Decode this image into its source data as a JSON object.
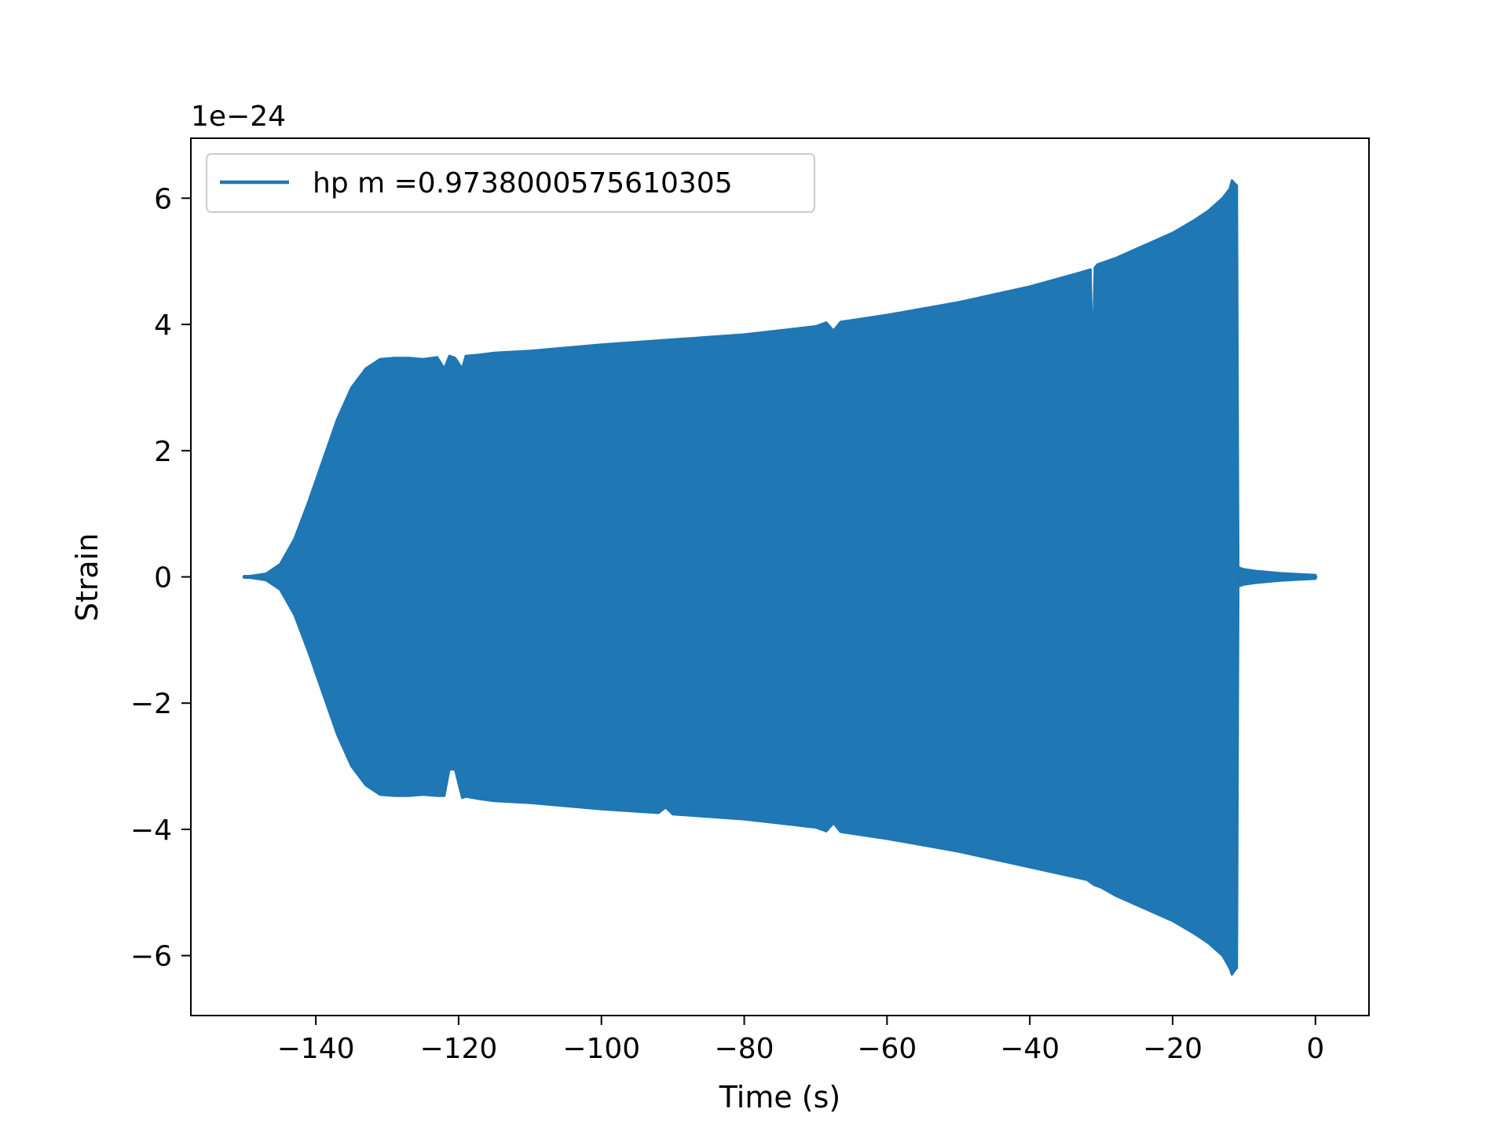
{
  "chart_data": {
    "type": "line",
    "xlabel": "Time (s)",
    "ylabel": "Strain",
    "y_scale_label": "1e−24",
    "y_scale_factor": 1e-24,
    "xlim": [
      -157.5,
      7.5
    ],
    "ylim": [
      -6.95,
      6.95
    ],
    "x_ticks": [
      -140,
      -120,
      -100,
      -80,
      -60,
      -40,
      -20,
      0
    ],
    "x_tick_labels": [
      "−140",
      "−120",
      "−100",
      "−80",
      "−60",
      "−40",
      "−20",
      "0"
    ],
    "y_ticks": [
      -6,
      -4,
      -2,
      0,
      2,
      4,
      6
    ],
    "y_tick_labels": [
      "−6",
      "−4",
      "−2",
      "0",
      "2",
      "4",
      "6"
    ],
    "grid": false,
    "legend_position": "upper-left",
    "series": [
      {
        "name": "hp m =0.9738000575610305",
        "color": "#1f77b4",
        "style": "dense-oscillation",
        "envelope_upper": {
          "x": [
            -150,
            -147,
            -145,
            -143,
            -141,
            -139,
            -137,
            -135,
            -133,
            -131,
            -129,
            -127,
            -125,
            -123,
            -122,
            -121.3,
            -120.5,
            -119.5,
            -119,
            -117,
            -115,
            -110,
            -100,
            -90,
            -80,
            -70,
            -68.5,
            -67.5,
            -66.5,
            -60,
            -50,
            -40,
            -33,
            -31.5,
            -31.2,
            -30.9,
            -30.5,
            -28,
            -25,
            -20,
            -17,
            -15,
            -13,
            -12,
            -11.7,
            -11.2,
            -11,
            -10.8
          ],
          "y": [
            0.0,
            0.05,
            0.2,
            0.6,
            1.2,
            1.85,
            2.5,
            3.0,
            3.3,
            3.45,
            3.47,
            3.47,
            3.45,
            3.48,
            3.3,
            3.5,
            3.47,
            3.3,
            3.5,
            3.52,
            3.55,
            3.58,
            3.68,
            3.76,
            3.84,
            3.97,
            4.03,
            3.9,
            4.04,
            4.15,
            4.35,
            4.6,
            4.82,
            4.87,
            3.3,
            4.9,
            4.95,
            5.05,
            5.2,
            5.45,
            5.65,
            5.8,
            6.0,
            6.15,
            6.28,
            6.22,
            6.2,
            0.15
          ]
        },
        "envelope_lower": {
          "x": [
            -150,
            -147,
            -145,
            -143,
            -141,
            -139,
            -137,
            -135,
            -133,
            -131,
            -129,
            -127,
            -125,
            -123,
            -122,
            -121.3,
            -120.5,
            -119.5,
            -119,
            -117,
            -115,
            -110,
            -100,
            -92,
            -91,
            -90,
            -80,
            -70,
            -68.5,
            -67.5,
            -66.5,
            -60,
            -50,
            -40,
            -32,
            -31,
            -30,
            -28,
            -25,
            -20,
            -17,
            -15,
            -13,
            -12,
            -11.7,
            -11.2,
            -11,
            -10.8
          ],
          "y": [
            0.0,
            -0.05,
            -0.2,
            -0.6,
            -1.2,
            -1.85,
            -2.5,
            -3.0,
            -3.3,
            -3.45,
            -3.47,
            -3.47,
            -3.45,
            -3.47,
            -3.47,
            -3.05,
            -3.05,
            -3.5,
            -3.48,
            -3.52,
            -3.55,
            -3.58,
            -3.68,
            -3.74,
            -3.65,
            -3.76,
            -3.84,
            -3.97,
            -4.03,
            -3.9,
            -4.04,
            -4.15,
            -4.35,
            -4.6,
            -4.8,
            -4.88,
            -4.92,
            -5.05,
            -5.2,
            -5.45,
            -5.65,
            -5.8,
            -6.0,
            -6.2,
            -6.3,
            -6.22,
            -6.2,
            -0.15
          ]
        },
        "tail": {
          "x": [
            -10.8,
            -10,
            -8,
            -5,
            -2,
            0
          ],
          "y_upper": [
            0.15,
            0.12,
            0.09,
            0.06,
            0.04,
            0.03
          ],
          "y_lower": [
            -0.15,
            -0.12,
            -0.09,
            -0.06,
            -0.04,
            -0.03
          ]
        }
      }
    ]
  }
}
